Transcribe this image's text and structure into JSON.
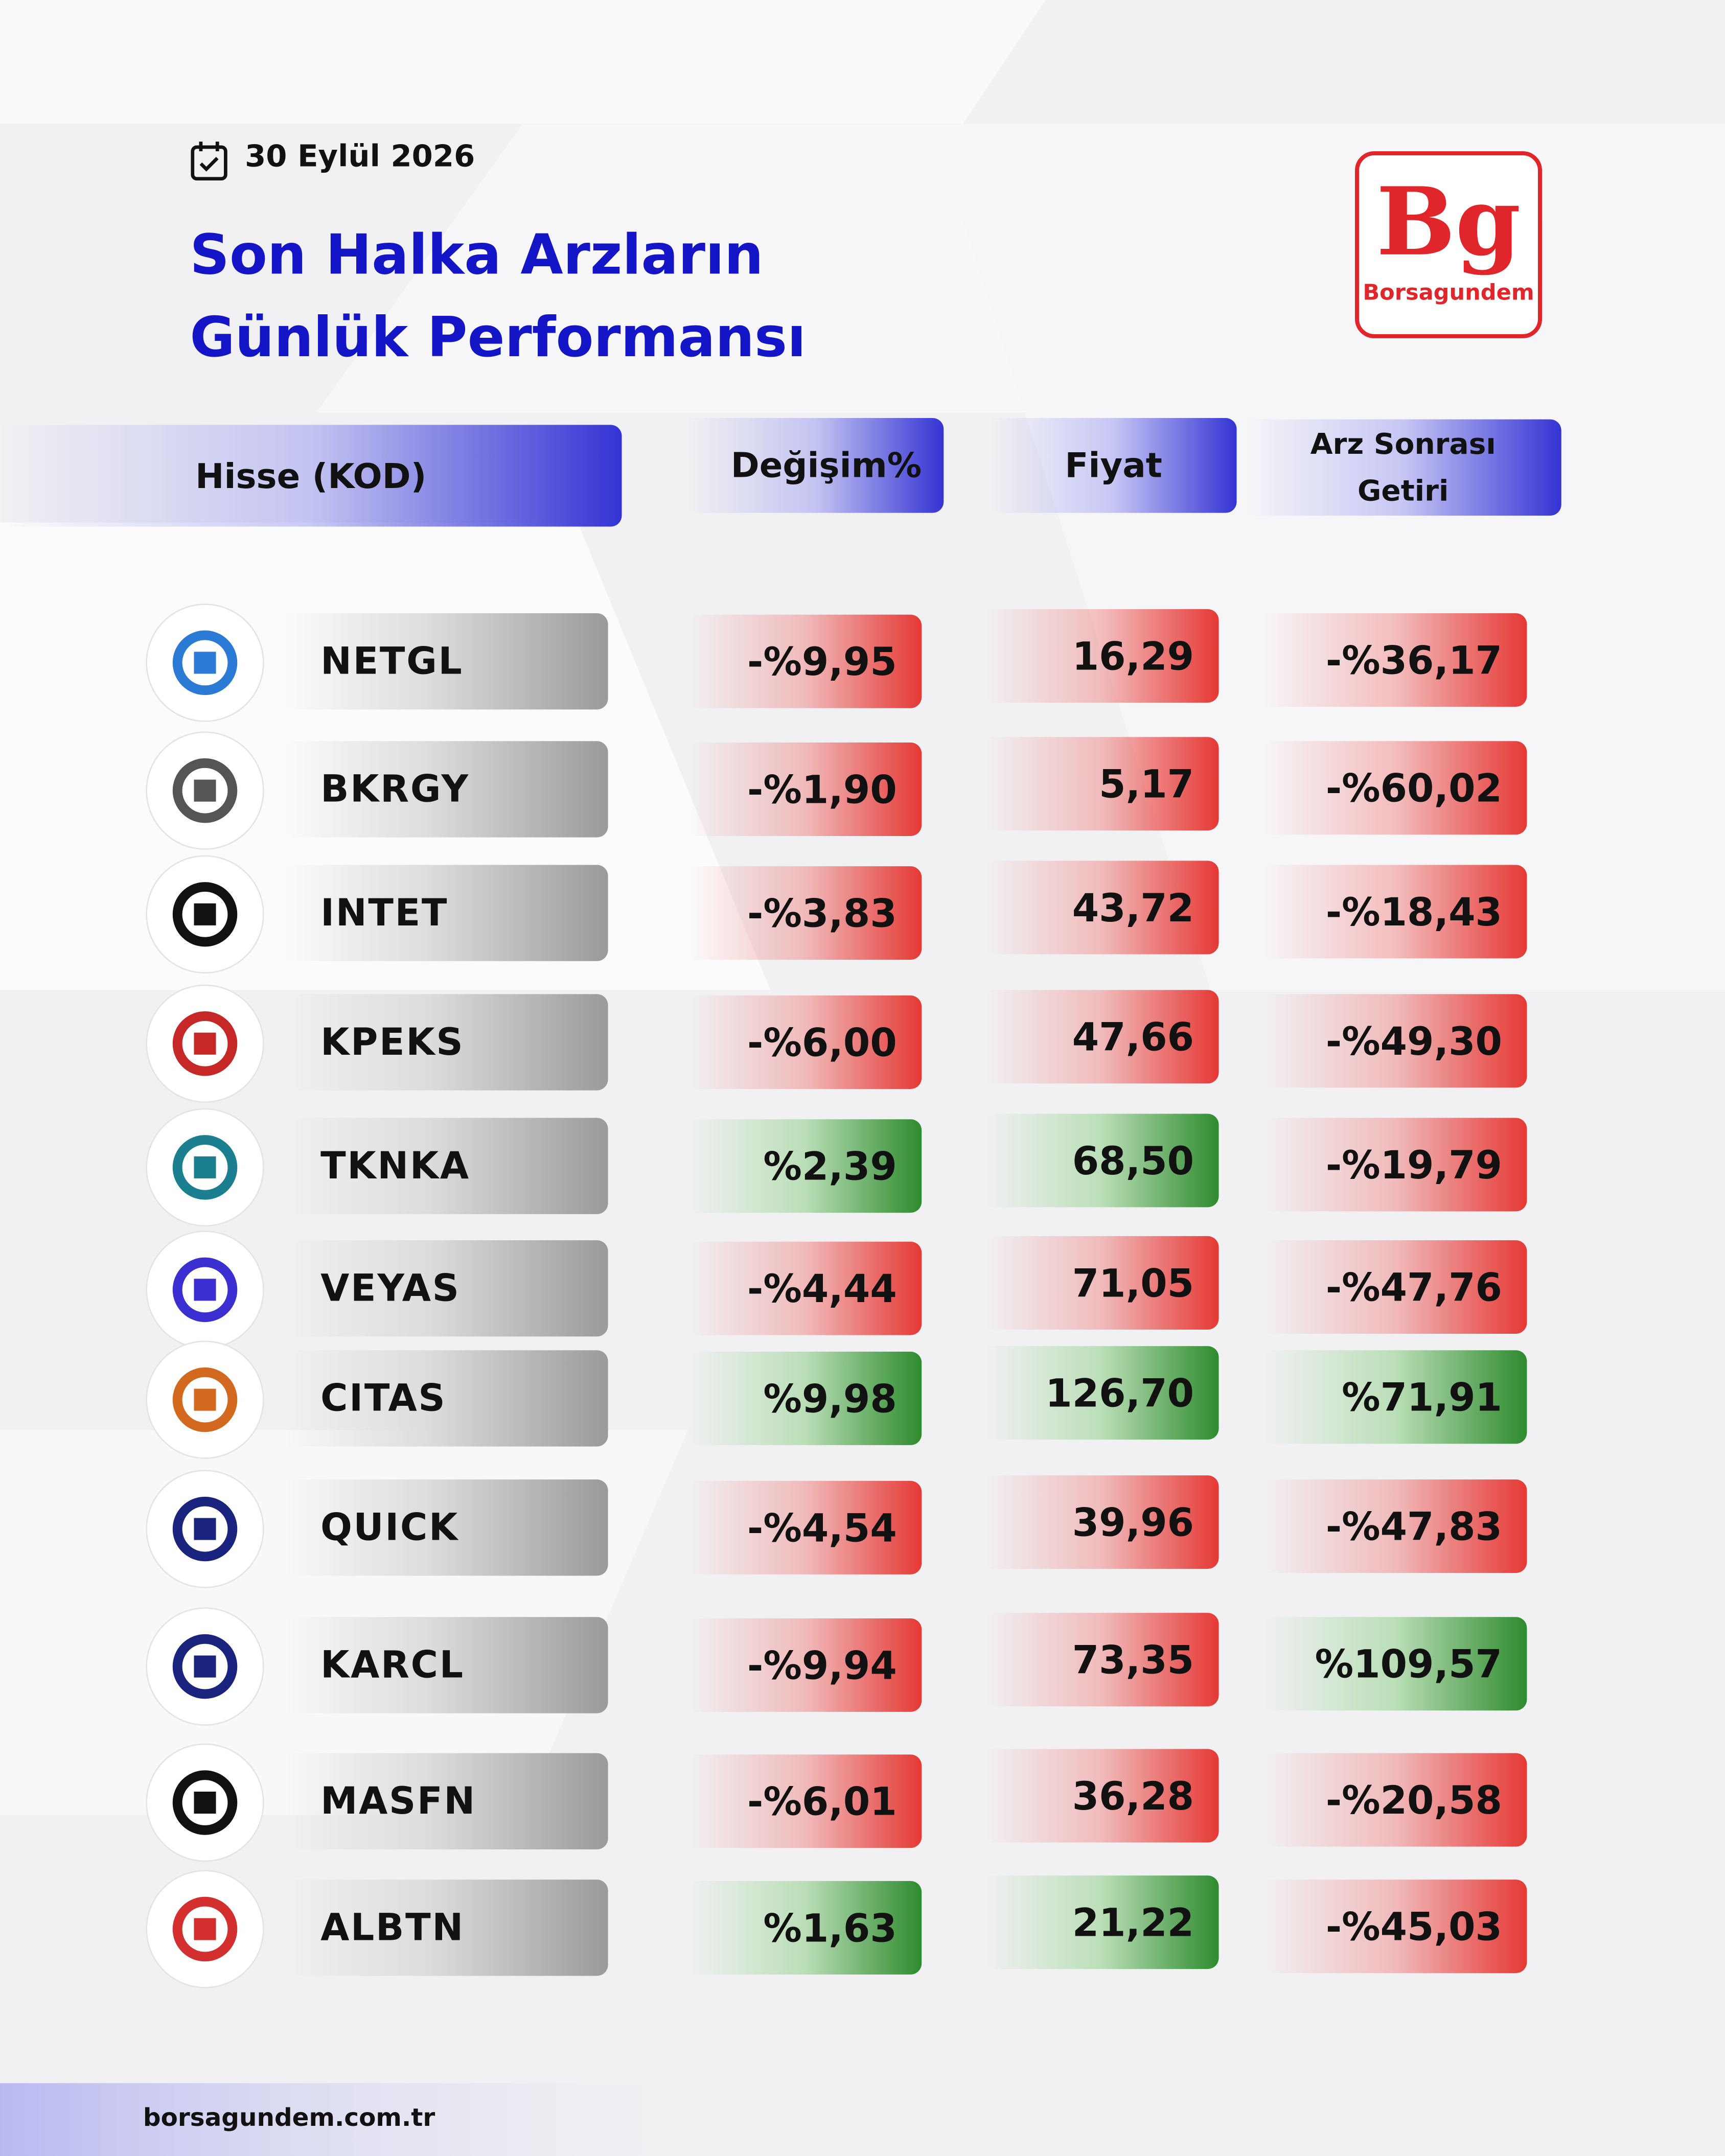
{
  "header": {
    "date": "30 Eylül 2026",
    "title": [
      "Son Halka Arzların",
      "Günlük Performansı"
    ],
    "brand": {
      "mark": "Bg",
      "name": "Borsagundem"
    }
  },
  "table": {
    "columns": [
      "Hisse (KOD)",
      "Değişim%",
      "Fiyat",
      "Arz Sonrası Getiri"
    ],
    "rows": [
      {
        "code": "NETGL",
        "change": "-%9,95",
        "price": "16,29",
        "return": "-%36,17"
      },
      {
        "code": "BKRGY",
        "change": "-%1,90",
        "price": "5,17",
        "return": "-%60,02"
      },
      {
        "code": "INTET",
        "change": "-%3,83",
        "price": "43,72",
        "return": "-%18,43"
      },
      {
        "code": "KPEKS",
        "change": "-%6,00",
        "price": "47,66",
        "return": "-%49,30"
      },
      {
        "code": "TKNKA",
        "change": "%2,39",
        "price": "68,50",
        "return": "-%19,79"
      },
      {
        "code": "VEYAS",
        "change": "-%4,44",
        "price": "71,05",
        "return": "-%47,76"
      },
      {
        "code": "CITAS",
        "change": "%9,98",
        "price": "126,70",
        "return": "%71,91"
      },
      {
        "code": "QUICK",
        "change": "-%4,54",
        "price": "39,96",
        "return": "-%47,83"
      },
      {
        "code": "KARCL",
        "change": "-%9,94",
        "price": "73,35",
        "return": "%109,57"
      },
      {
        "code": "MASFN",
        "change": "-%6,01",
        "price": "36,28",
        "return": "-%20,58"
      },
      {
        "code": "ALBTN",
        "change": "%1,63",
        "price": "21,22",
        "return": "-%45,03"
      }
    ]
  },
  "footer": {
    "url": "borsagundem.com.tr"
  }
}
